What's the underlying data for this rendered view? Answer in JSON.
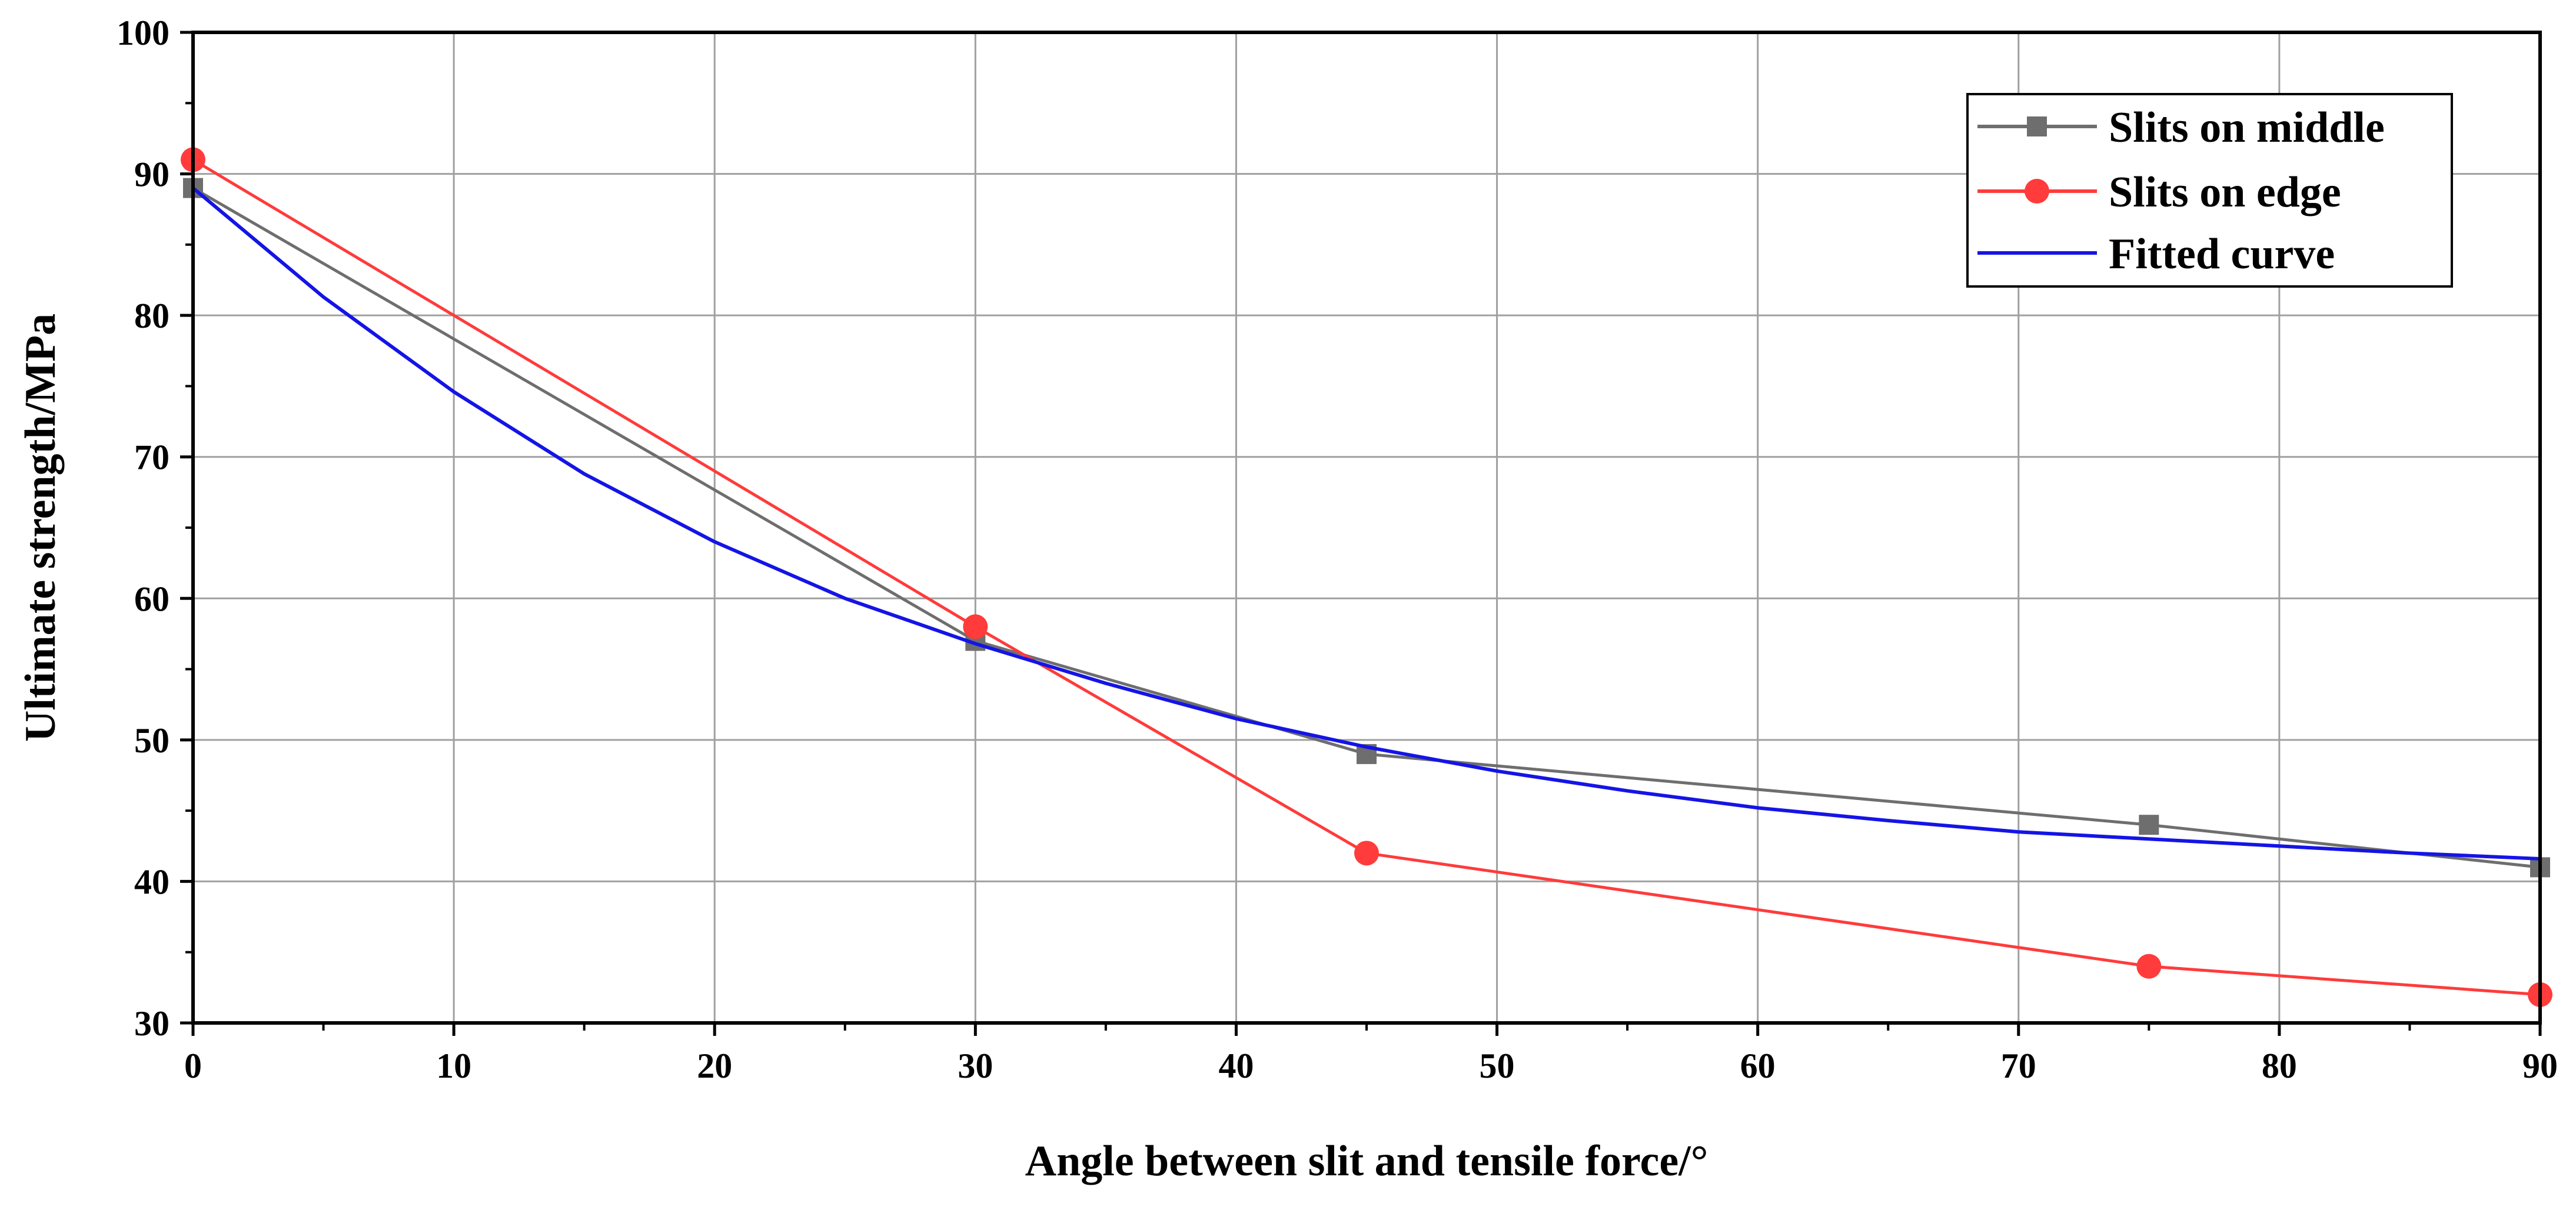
{
  "chart_data": {
    "type": "line",
    "title": "",
    "xlabel": "Angle between slit and tensile force/°",
    "ylabel": "Ultimate strength/MPa",
    "xlim": [
      0,
      90
    ],
    "ylim": [
      30,
      100
    ],
    "xticks": [
      0,
      10,
      20,
      30,
      40,
      50,
      60,
      70,
      80,
      90
    ],
    "yticks": [
      30,
      40,
      50,
      60,
      70,
      80,
      90,
      100
    ],
    "grid": true,
    "legend_position": "top-right",
    "series": [
      {
        "name": "Slits on middle",
        "color": "#6e6e6e",
        "marker": "square",
        "x": [
          0,
          30,
          45,
          75,
          90
        ],
        "y": [
          89,
          57,
          49,
          44,
          41
        ]
      },
      {
        "name": "Slits on edge",
        "color": "#ff3b3b",
        "marker": "circle",
        "x": [
          0,
          30,
          45,
          75,
          90
        ],
        "y": [
          91,
          58,
          42,
          34,
          32
        ]
      },
      {
        "name": "Fitted curve",
        "color": "#1414e6",
        "marker": "none",
        "x": [
          0,
          5,
          10,
          15,
          20,
          25,
          30,
          35,
          40,
          45,
          50,
          55,
          60,
          65,
          70,
          75,
          80,
          85,
          90
        ],
        "y": [
          89,
          81.3,
          74.6,
          68.8,
          64,
          60,
          56.8,
          54,
          51.5,
          49.5,
          47.8,
          46.4,
          45.2,
          44.3,
          43.5,
          43,
          42.5,
          42,
          41.6
        ]
      }
    ]
  }
}
